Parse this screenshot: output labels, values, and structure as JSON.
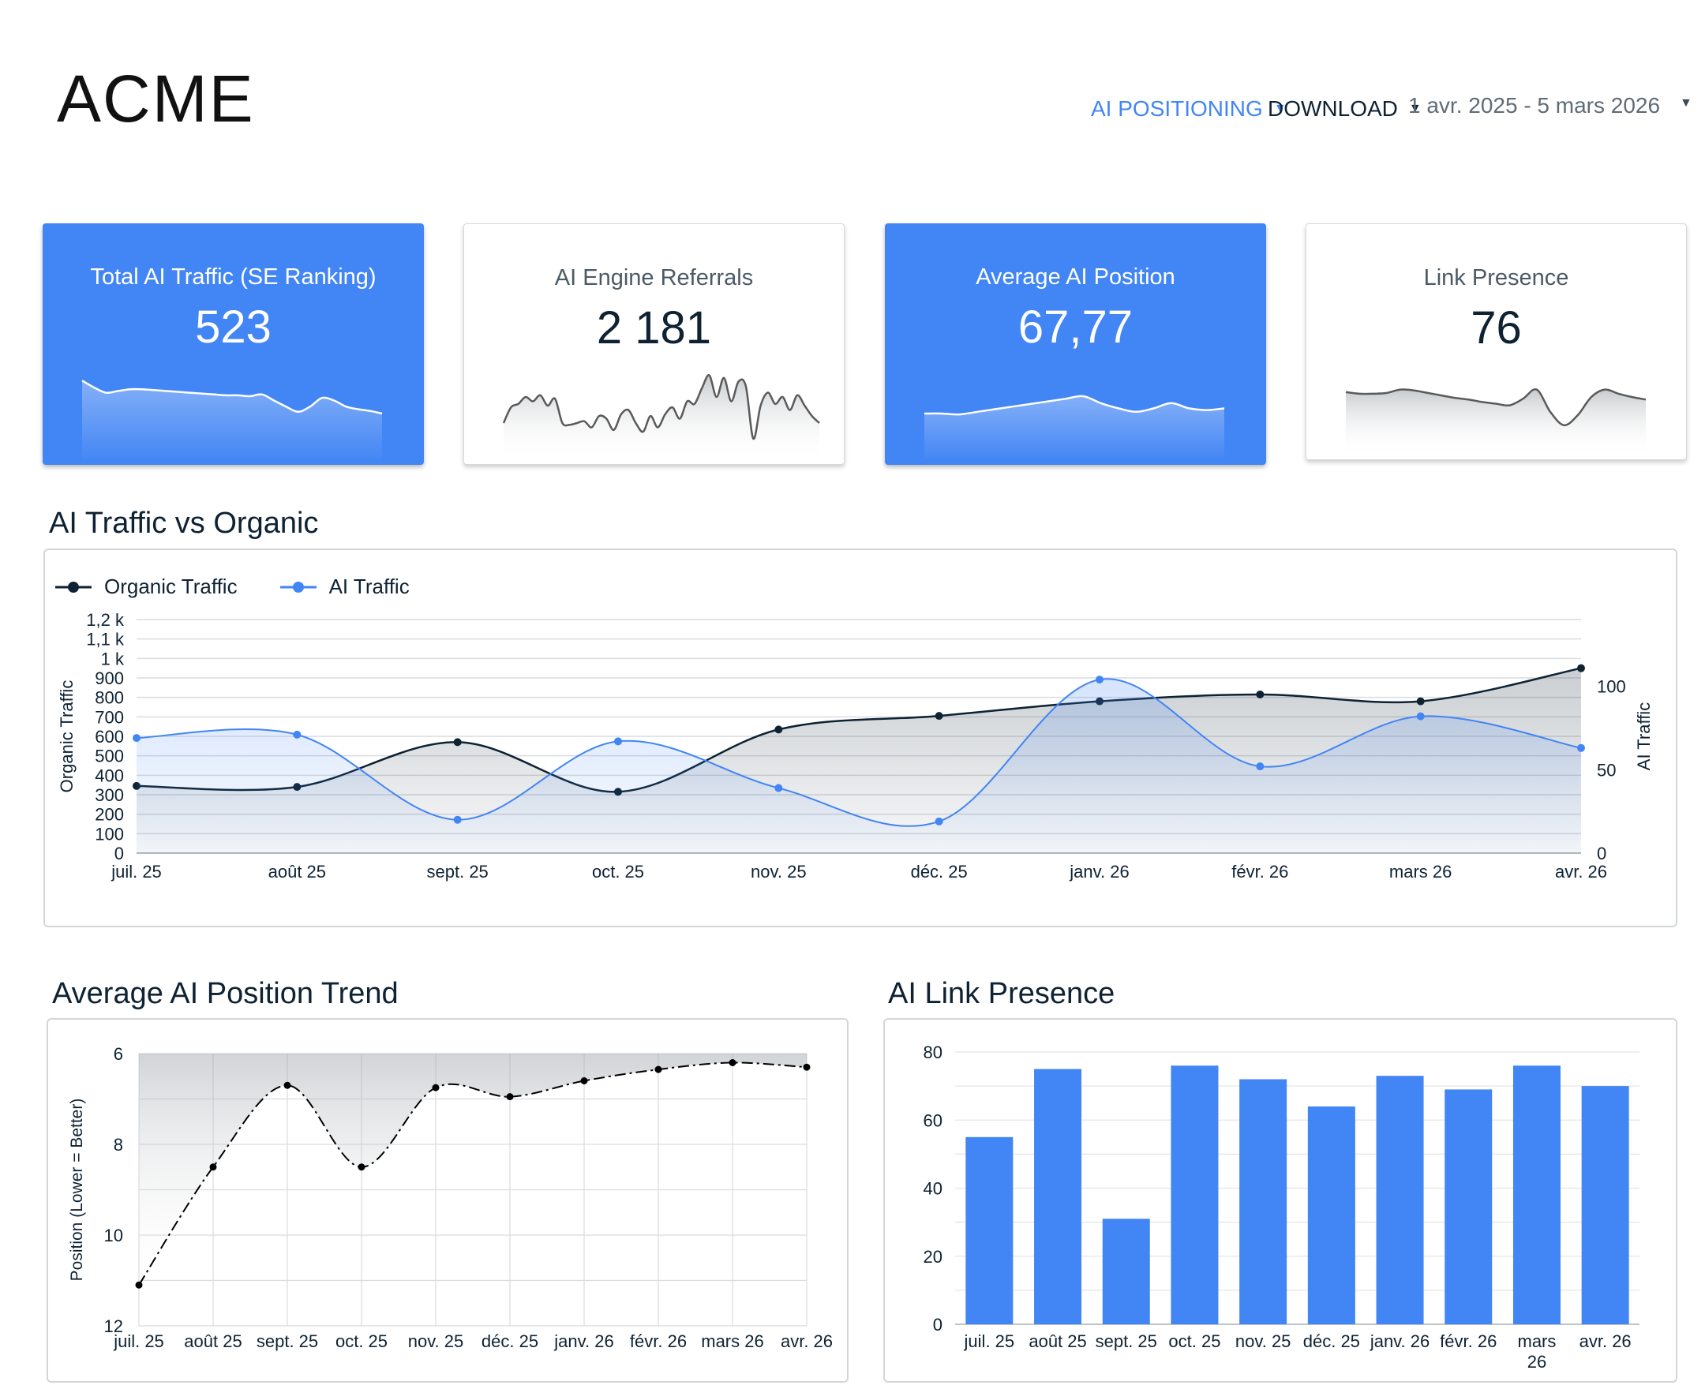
{
  "header": {
    "logo_text": "ACME",
    "nav": [
      {
        "label": "AI POSITIONING",
        "active": true
      },
      {
        "label": "DOWNLOAD",
        "active": false
      }
    ],
    "date_range": "1 avr. 2025 - 5 mars 2026"
  },
  "kpis": [
    {
      "label": "Total AI Traffic (SE Ranking)",
      "value": "523",
      "style": "blue",
      "spark": [
        78,
        70,
        64,
        66,
        68,
        68,
        67,
        66,
        65,
        64,
        63,
        62,
        61,
        61,
        60,
        62,
        55,
        48,
        42,
        48,
        58,
        55,
        48,
        45,
        43,
        40
      ]
    },
    {
      "label": "AI Engine Referrals",
      "value": "2 181",
      "style": "white",
      "spark": [
        30,
        48,
        52,
        60,
        55,
        62,
        50,
        58,
        30,
        28,
        30,
        32,
        25,
        38,
        35,
        22,
        40,
        45,
        30,
        20,
        38,
        25,
        40,
        48,
        35,
        55,
        52,
        70,
        85,
        60,
        82,
        55,
        78,
        72,
        12,
        50,
        65,
        52,
        60,
        45,
        62,
        50,
        38,
        30
      ]
    },
    {
      "label": "Average AI Position",
      "value": "67,77",
      "style": "blue",
      "spark": [
        40,
        40,
        39,
        42,
        45,
        48,
        51,
        54,
        57,
        60,
        52,
        46,
        42,
        46,
        52,
        46,
        44,
        46
      ]
    },
    {
      "label": "Link Presence",
      "value": "76",
      "style": "white",
      "spark": [
        64,
        62,
        62,
        63,
        67,
        66,
        63,
        60,
        57,
        55,
        52,
        50,
        48,
        56,
        67,
        40,
        24,
        36,
        58,
        67,
        62,
        58,
        55
      ]
    }
  ],
  "sections": {
    "traffic": "AI Traffic vs Organic",
    "position": "Average AI Position Trend",
    "presence": "AI Link Presence"
  },
  "colors": {
    "accent": "#4285f4",
    "organic": "#0e2233",
    "ai": "#4285f4",
    "position": "#000000"
  },
  "chart_data": [
    {
      "type": "line",
      "title": "AI Traffic vs Organic",
      "categories": [
        "juil. 25",
        "août 25",
        "sept. 25",
        "oct. 25",
        "nov. 25",
        "déc. 25",
        "janv. 26",
        "févr. 26",
        "mars 26",
        "avr. 26"
      ],
      "series": [
        {
          "name": "Organic Traffic",
          "axis": "left",
          "values": [
            345,
            340,
            570,
            315,
            635,
            705,
            780,
            815,
            780,
            950
          ]
        },
        {
          "name": "AI Traffic",
          "axis": "right",
          "values": [
            69,
            71,
            20,
            67,
            39,
            19,
            104,
            52,
            82,
            63
          ]
        }
      ],
      "ylabel_left": "Organic Traffic",
      "ylabel_right": "AI Traffic",
      "ylim_left": [
        0,
        1200
      ],
      "ylim_right": [
        0,
        140
      ],
      "left_ticks": [
        "0",
        "100",
        "200",
        "300",
        "400",
        "500",
        "600",
        "700",
        "800",
        "900",
        "1 k",
        "1,1 k",
        "1,2 k"
      ],
      "right_ticks": [
        "0",
        "50",
        "100"
      ],
      "legend": "top-left",
      "grid": true
    },
    {
      "type": "line",
      "title": "Average AI Position Trend",
      "categories": [
        "juil. 25",
        "août 25",
        "sept. 25",
        "oct. 25",
        "nov. 25",
        "déc. 25",
        "janv. 26",
        "févr. 26",
        "mars 26",
        "avr. 26"
      ],
      "values": [
        11.1,
        8.5,
        6.7,
        8.5,
        6.75,
        6.95,
        6.6,
        6.35,
        6.2,
        6.3
      ],
      "ylabel": "Position (Lower = Better)",
      "ylim": [
        12,
        6
      ],
      "ticks": [
        "6",
        "8",
        "10",
        "12"
      ],
      "y_reversed": true,
      "grid": true
    },
    {
      "type": "bar",
      "title": "AI Link Presence",
      "categories": [
        "juil. 25",
        "août 25",
        "sept. 25",
        "oct. 25",
        "nov. 25",
        "déc. 25",
        "janv. 26",
        "févr. 26",
        "mars 26",
        "avr. 26"
      ],
      "values": [
        55,
        75,
        31,
        76,
        72,
        64,
        73,
        69,
        76,
        70
      ],
      "ylim": [
        0,
        80
      ],
      "ticks": [
        "0",
        "20",
        "40",
        "60",
        "80"
      ],
      "grid": true
    }
  ]
}
